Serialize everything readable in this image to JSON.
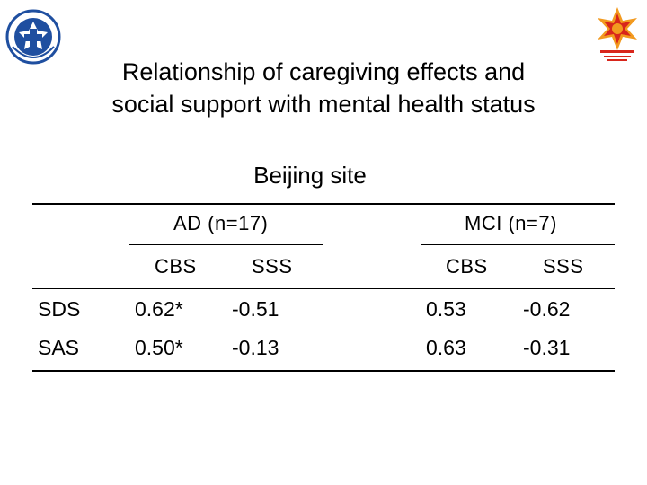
{
  "title_line1": "Relationship of caregiving effects and",
  "title_line2": "social support with mental health status",
  "site": "Beijing site",
  "table": {
    "group_headers": [
      "AD (n=17)",
      "MCI (n=7)"
    ],
    "sub_headers": [
      "CBS",
      "SSS",
      "CBS",
      "SSS"
    ],
    "rows": [
      {
        "label": "SDS",
        "values": [
          "0.62*",
          "-0.51",
          "0.53",
          "-0.62"
        ]
      },
      {
        "label": "SAS",
        "values": [
          "0.50*",
          "-0.13",
          "0.63",
          "-0.31"
        ]
      }
    ]
  },
  "logos": {
    "left": "hospital-emblem-icon",
    "right": "alzheimer-association-logo-icon"
  },
  "colors": {
    "emblem_blue": "#1f4fa0",
    "logo_red": "#d8261c",
    "logo_orange": "#f29a1f"
  }
}
